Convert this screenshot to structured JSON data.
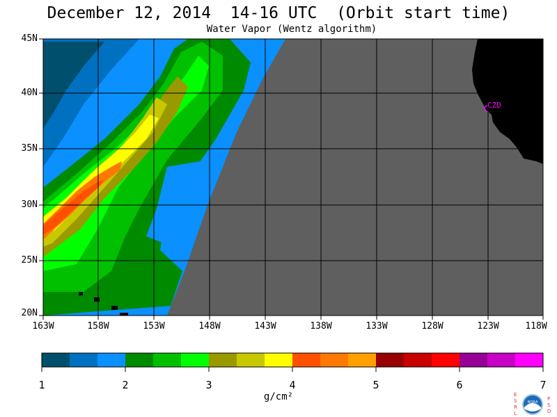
{
  "title": "December 12, 2014  14-16 UTC  (Orbit start time)",
  "subtitle": "Water Vapor (Wentz algorithm)",
  "map": {
    "lat_labels": [
      "45N",
      "40N",
      "35N",
      "30N",
      "25N",
      "20N"
    ],
    "lon_labels": [
      "163W",
      "158W",
      "153W",
      "148W",
      "143W",
      "138W",
      "133W",
      "128W",
      "123W",
      "118W"
    ],
    "station_label": "CZD",
    "colors": {
      "no_data": "#5f5f5f",
      "land": "#000000",
      "station": "#ff00ff",
      "grid": "#000000"
    }
  },
  "colorbar": {
    "ticks": [
      "1",
      "2",
      "3",
      "4",
      "5",
      "6",
      "7"
    ],
    "colors": [
      "#004f6d",
      "#0070c0",
      "#0a90ff",
      "#008a00",
      "#00c000",
      "#00ff00",
      "#9a9a00",
      "#c8c800",
      "#ffff00",
      "#ff5000",
      "#ff7800",
      "#ffa000",
      "#960000",
      "#c80000",
      "#ff0000",
      "#960096",
      "#c800c8",
      "#ff00ff"
    ],
    "units": "g/cm²"
  },
  "logo": {
    "left_text": "ESRL",
    "right_text": "PSD",
    "center_text": "NOAA"
  }
}
